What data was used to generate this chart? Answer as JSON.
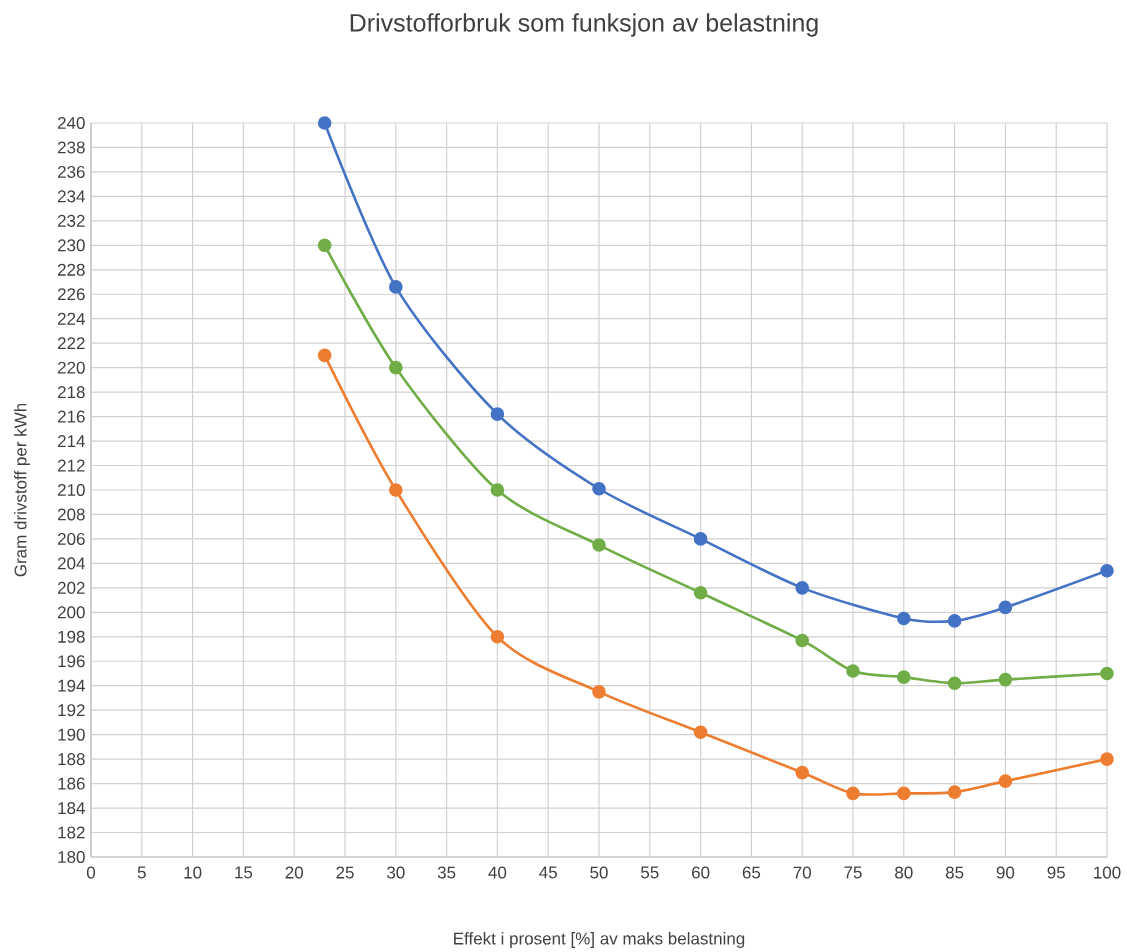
{
  "chart_data": {
    "type": "line",
    "title": "Drivstofforbruk som funksjon av belastning",
    "xlabel": "Effekt i prosent [%] av maks belastning",
    "ylabel": "Gram drivstoff per kWh",
    "x": [
      23,
      30,
      40,
      50,
      60,
      70,
      75,
      80,
      85,
      90,
      100
    ],
    "series": [
      {
        "color": "#4472c4",
        "values": [
          240,
          226.6,
          216.2,
          210.1,
          206.0,
          202.0,
          null,
          199.5,
          199.3,
          200.4,
          203.4
        ]
      },
      {
        "color": "#70ad47",
        "values": [
          230,
          220,
          210,
          205.5,
          201.6,
          197.7,
          195.2,
          194.7,
          194.2,
          194.5,
          195.0
        ]
      },
      {
        "color": "#ed7d31",
        "values": [
          221,
          210,
          198,
          193.5,
          190.2,
          186.9,
          185.2,
          185.2,
          185.3,
          186.2,
          188.0
        ]
      }
    ],
    "xlim": [
      0,
      100
    ],
    "xticks": [
      0,
      5,
      10,
      15,
      20,
      25,
      30,
      35,
      40,
      45,
      50,
      55,
      60,
      65,
      70,
      75,
      80,
      85,
      90,
      95,
      100
    ],
    "ylim": [
      180,
      240
    ],
    "yticks": [
      180,
      182,
      184,
      186,
      188,
      190,
      192,
      194,
      196,
      198,
      200,
      202,
      204,
      206,
      208,
      210,
      212,
      214,
      216,
      218,
      220,
      222,
      224,
      226,
      228,
      230,
      232,
      234,
      236,
      238,
      240
    ],
    "grid": true,
    "marker": "circle",
    "line_style": "solid"
  }
}
